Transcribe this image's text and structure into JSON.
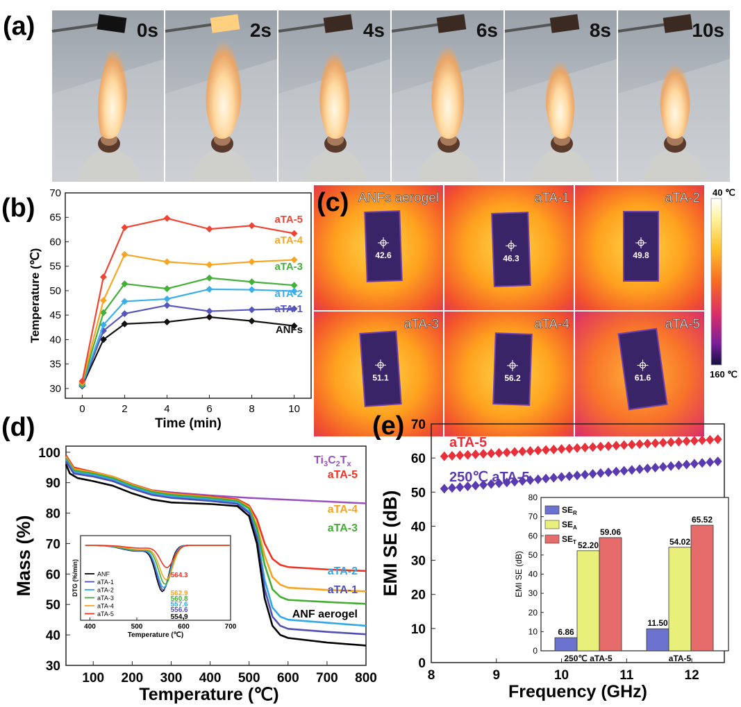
{
  "panels": {
    "a": {
      "label": "(a)",
      "frames": [
        "0s",
        "2s",
        "4s",
        "6s",
        "8s",
        "10s"
      ]
    },
    "b": {
      "label": "(b)"
    },
    "c": {
      "label": "(c)",
      "scale_top": "40 ℃",
      "scale_bottom": "160 ℃",
      "tiles": [
        {
          "name": "ANFs aerogel",
          "value": "42.6"
        },
        {
          "name": "aTA-1",
          "value": "46.3"
        },
        {
          "name": "aTA-2",
          "value": "49.8"
        },
        {
          "name": "aTA-3",
          "value": "51.1"
        },
        {
          "name": "aTA-4",
          "value": "56.2"
        },
        {
          "name": "aTA-5",
          "value": "61.6"
        }
      ]
    },
    "d": {
      "label": "(d)"
    },
    "e": {
      "label": "(e)"
    }
  },
  "chart_data": [
    {
      "id": "b",
      "type": "line",
      "xlabel": "Time (min)",
      "ylabel": "Temperature (℃)",
      "xlim": [
        -0.8,
        10.8
      ],
      "ylim": [
        28,
        70
      ],
      "xticks": [
        0,
        2,
        4,
        6,
        8,
        10
      ],
      "yticks": [
        30,
        35,
        40,
        45,
        50,
        55,
        60,
        65,
        70
      ],
      "x": [
        0,
        1,
        2,
        4,
        6,
        8,
        10
      ],
      "series": [
        {
          "name": "ANFs",
          "color": "#111111",
          "values": [
            30.5,
            40.0,
            43.2,
            43.6,
            44.6,
            43.8,
            42.8
          ]
        },
        {
          "name": "aTA-1",
          "color": "#5555bb",
          "values": [
            30.6,
            41.8,
            45.3,
            47.0,
            45.8,
            46.1,
            46.3
          ]
        },
        {
          "name": "aTA-2",
          "color": "#3aaee8",
          "values": [
            30.7,
            43.0,
            47.8,
            48.3,
            50.3,
            50.2,
            49.9
          ]
        },
        {
          "name": "aTA-3",
          "color": "#44b03a",
          "values": [
            30.9,
            45.5,
            51.4,
            50.4,
            52.6,
            51.8,
            51.1
          ]
        },
        {
          "name": "aTA-4",
          "color": "#f6a623",
          "values": [
            31.2,
            48.0,
            57.4,
            55.9,
            55.3,
            55.9,
            56.3
          ]
        },
        {
          "name": "aTA-5",
          "color": "#ee4433",
          "values": [
            31.5,
            52.8,
            62.9,
            64.8,
            62.6,
            63.3,
            61.7
          ]
        }
      ]
    },
    {
      "id": "d",
      "type": "line",
      "xlabel": "Temperature (℃)",
      "ylabel": "Mass (%)",
      "xlim": [
        30,
        800
      ],
      "ylim": [
        30,
        102
      ],
      "xticks": [
        100,
        200,
        300,
        400,
        500,
        600,
        700,
        800
      ],
      "yticks": [
        30,
        40,
        50,
        60,
        70,
        80,
        90,
        100
      ],
      "series": [
        {
          "name": "Ti3C2Tx",
          "label_main": "Ti",
          "label_sub1": "3",
          "label_mid": "C",
          "label_sub2": "2",
          "label_end": "T",
          "label_sub3": "x",
          "color": "#9a4fc1",
          "x": [
            30,
            50,
            100,
            150,
            200,
            250,
            300,
            400,
            500,
            600,
            700,
            800
          ],
          "values": [
            98,
            94.5,
            92.5,
            91,
            89,
            87.5,
            86.8,
            85.8,
            85.0,
            84.4,
            83.8,
            83.2
          ]
        },
        {
          "name": "aTA-5",
          "color": "#ee3322",
          "x": [
            30,
            50,
            100,
            150,
            200,
            250,
            300,
            400,
            470,
            500,
            520,
            540,
            560,
            580,
            600,
            700,
            800
          ],
          "values": [
            99,
            95,
            93.5,
            92,
            89.5,
            87.5,
            86.5,
            85.5,
            84.5,
            82.5,
            78,
            70,
            65,
            63,
            62.3,
            61.5,
            61
          ]
        },
        {
          "name": "aTA-4",
          "color": "#f5a421",
          "x": [
            30,
            50,
            100,
            150,
            200,
            250,
            300,
            400,
            470,
            500,
            520,
            540,
            560,
            580,
            600,
            700,
            800
          ],
          "values": [
            98.5,
            94.5,
            93.3,
            92,
            89.3,
            87.3,
            86.3,
            85.2,
            84.2,
            82,
            76,
            66,
            59,
            56.5,
            55.5,
            54.8,
            54.3
          ]
        },
        {
          "name": "aTA-3",
          "color": "#43ad33",
          "x": [
            30,
            50,
            100,
            150,
            200,
            250,
            300,
            400,
            470,
            500,
            520,
            540,
            560,
            580,
            600,
            700,
            800
          ],
          "values": [
            98,
            94,
            93,
            91.5,
            89,
            87,
            86,
            85,
            84,
            81.5,
            75,
            63,
            55,
            52.5,
            51.5,
            50.8,
            50.2
          ]
        },
        {
          "name": "aTA-2",
          "color": "#31a8e4",
          "x": [
            30,
            50,
            100,
            150,
            200,
            250,
            300,
            400,
            470,
            500,
            520,
            540,
            560,
            580,
            600,
            700,
            800
          ],
          "values": [
            97.5,
            93.5,
            92.5,
            91,
            88.5,
            86.5,
            85.5,
            84.5,
            83.5,
            80.5,
            73,
            58,
            49,
            46,
            45,
            44,
            43
          ]
        },
        {
          "name": "aTA-1",
          "color": "#5050b4",
          "x": [
            30,
            50,
            100,
            150,
            200,
            250,
            300,
            400,
            470,
            500,
            520,
            540,
            560,
            580,
            600,
            700,
            800
          ],
          "values": [
            97,
            93,
            92,
            90.5,
            88,
            86,
            85,
            84,
            83,
            80,
            72,
            55,
            46,
            43,
            42,
            41,
            40.2
          ]
        },
        {
          "name": "ANF aerogel",
          "color": "#000000",
          "x": [
            30,
            40,
            60,
            100,
            150,
            200,
            250,
            300,
            400,
            470,
            500,
            520,
            540,
            560,
            580,
            600,
            700,
            800
          ],
          "values": [
            96,
            93,
            91.5,
            90.5,
            89,
            86.5,
            84.5,
            83.5,
            83,
            82.3,
            79,
            70,
            52,
            43,
            40,
            39,
            37.5,
            36.5
          ]
        }
      ]
    },
    {
      "id": "d-inset",
      "type": "line",
      "xlabel": "Temperature (℃)",
      "ylabel": "DTG (%/min)",
      "xlim": [
        380,
        700
      ],
      "ylim": [
        0,
        1
      ],
      "xticks": [
        400,
        500,
        600,
        700
      ],
      "series": [
        {
          "name": "ANF",
          "color": "#000000",
          "peak": 554.9,
          "depth": 0.83
        },
        {
          "name": "aTA-1",
          "color": "#5050b4",
          "peak": 556.6,
          "depth": 0.8
        },
        {
          "name": "aTA-2",
          "color": "#31a8e4",
          "peak": 557.6,
          "depth": 0.76
        },
        {
          "name": "aTA-3",
          "color": "#43ad33",
          "peak": 560.8,
          "depth": 0.7
        },
        {
          "name": "aTA-4",
          "color": "#f5a421",
          "peak": 562.9,
          "depth": 0.62
        },
        {
          "name": "aTA-5",
          "color": "#ee3322",
          "peak": 564.3,
          "depth": 0.4
        }
      ],
      "annotations": [
        "564.3",
        "562.9",
        "560.8",
        "557.6",
        "556.6",
        "554.9"
      ]
    },
    {
      "id": "e",
      "type": "scatter",
      "xlabel": "Frequency (GHz)",
      "ylabel": "EMI SE (dB)",
      "xlim": [
        8,
        12.5
      ],
      "ylim": [
        0,
        70
      ],
      "xticks": [
        8,
        9,
        10,
        11,
        12
      ],
      "yticks": [
        0,
        10,
        20,
        30,
        40,
        50,
        60,
        70
      ],
      "series": [
        {
          "name": "aTA-5",
          "color": "#e8303a",
          "start": 60.5,
          "end": 65.5
        },
        {
          "name": "250℃ aTA-5",
          "color": "#5a3ab0",
          "start": 51.0,
          "end": 59.0
        }
      ],
      "f_start": 8.2,
      "f_end": 12.4,
      "points": 36
    },
    {
      "id": "e-inset",
      "type": "bar",
      "ylabel": "EMI SE (dB)",
      "ylim": [
        0,
        80
      ],
      "yticks": [
        0,
        10,
        20,
        30,
        40,
        50,
        60,
        70,
        80
      ],
      "categories": [
        "250℃ aTA-5",
        "aTA-5"
      ],
      "series": [
        {
          "name": "SE",
          "sub": "R",
          "color": "#6b73cf",
          "values": [
            6.86,
            11.5
          ],
          "labels": [
            "6.86",
            "11.50"
          ]
        },
        {
          "name": "SE",
          "sub": "A",
          "color": "#e9f07a",
          "values": [
            52.2,
            54.02
          ],
          "labels": [
            "52.20",
            "54.02"
          ]
        },
        {
          "name": "SE",
          "sub": "T",
          "color": "#e66b6b",
          "values": [
            59.06,
            65.52
          ],
          "labels": [
            "59.06",
            "65.52"
          ]
        }
      ]
    }
  ]
}
